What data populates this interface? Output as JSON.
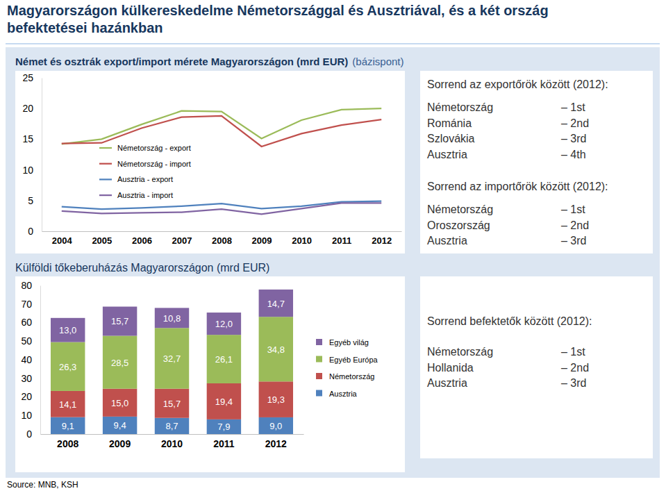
{
  "title": [
    "Magyarországon külkereskedelme Németországgal és Ausztriával, és a két ország",
    "befektetései hazánkban"
  ],
  "source": "Source: MNB, KSH",
  "rankings": [
    {
      "title": "Sorrend az exportőrök között (2012):",
      "items": [
        {
          "country": "Németország",
          "rank": "– 1st"
        },
        {
          "country": "Románia",
          "rank": "– 2nd"
        },
        {
          "country": "Szlovákia",
          "rank": "– 3rd"
        },
        {
          "country": "Ausztria",
          "rank": "– 4th"
        }
      ]
    },
    {
      "title": "Sorrend az importőrök között (2012):",
      "items": [
        {
          "country": "Németország",
          "rank": "– 1st"
        },
        {
          "country": "Oroszország",
          "rank": "– 2nd"
        },
        {
          "country": "Ausztria",
          "rank": "– 3rd"
        }
      ]
    },
    {
      "title": "Sorrend befektetők között (2012):",
      "items": [
        {
          "country": "Németország",
          "rank": "– 1st"
        },
        {
          "country": "Hollanida",
          "rank": "– 2nd"
        },
        {
          "country": "Ausztria",
          "rank": "– 3rd"
        }
      ]
    }
  ],
  "chart_data": [
    {
      "type": "line",
      "title": "Német és osztrák export/import mérete Magyarországon (mrd EUR)",
      "subtitle": "(bázispont)",
      "categories": [
        "2004",
        "2005",
        "2006",
        "2007",
        "2008",
        "2009",
        "2010",
        "2011",
        "2012"
      ],
      "series": [
        {
          "name": "Németország - export",
          "color": "#9bbb59",
          "values": [
            14.2,
            15.0,
            17.4,
            19.6,
            19.5,
            15.1,
            18.1,
            19.8,
            20.0
          ]
        },
        {
          "name": "Németország - import",
          "color": "#c0504d",
          "values": [
            14.3,
            14.4,
            16.8,
            18.6,
            18.8,
            13.8,
            15.9,
            17.3,
            18.2
          ]
        },
        {
          "name": "Ausztria - export",
          "color": "#4f81bd",
          "values": [
            4.0,
            3.6,
            3.8,
            4.1,
            4.5,
            3.7,
            4.1,
            4.8,
            4.9
          ]
        },
        {
          "name": "Ausztria - import",
          "color": "#8064a2",
          "values": [
            3.3,
            2.9,
            3.0,
            3.1,
            3.6,
            2.8,
            3.7,
            4.6,
            4.6
          ]
        }
      ],
      "ylim": [
        0,
        25
      ],
      "yticks": [
        0,
        5,
        10,
        15,
        20,
        25
      ],
      "grid": false,
      "legend": "left"
    },
    {
      "type": "bar",
      "title": "Külföldi tőkeberuházás Magyarországon (mrd EUR)",
      "categories": [
        "2008",
        "2009",
        "2010",
        "2011",
        "2012"
      ],
      "series": [
        {
          "name": "Ausztria",
          "color": "#4f81bd",
          "values": [
            9.1,
            9.4,
            8.7,
            7.9,
            9.0
          ],
          "value_labels": [
            "9,1",
            "9,4",
            "8,7",
            "7,9",
            "9,0"
          ]
        },
        {
          "name": "Németország",
          "color": "#c0504d",
          "values": [
            14.1,
            15.0,
            15.7,
            19.4,
            19.3
          ],
          "value_labels": [
            "14,1",
            "15,0",
            "15,7",
            "19,4",
            "19,3"
          ]
        },
        {
          "name": "Egyéb Európa",
          "color": "#9bbb59",
          "values": [
            26.3,
            28.5,
            32.7,
            26.1,
            34.8
          ],
          "value_labels": [
            "26,3",
            "28,5",
            "32,7",
            "26,1",
            "34,8"
          ]
        },
        {
          "name": "Egyéb világ",
          "color": "#8064a2",
          "values": [
            13.0,
            15.7,
            10.8,
            12.0,
            14.7
          ],
          "value_labels": [
            "13,0",
            "15,7",
            "10,8",
            "12,0",
            "14,7"
          ]
        }
      ],
      "ylim": [
        0,
        80
      ],
      "yticks": [
        0,
        10,
        20,
        30,
        40,
        50,
        60,
        70,
        80
      ],
      "stacked": true,
      "data_labels": true,
      "grid": false,
      "legend": "right"
    }
  ]
}
